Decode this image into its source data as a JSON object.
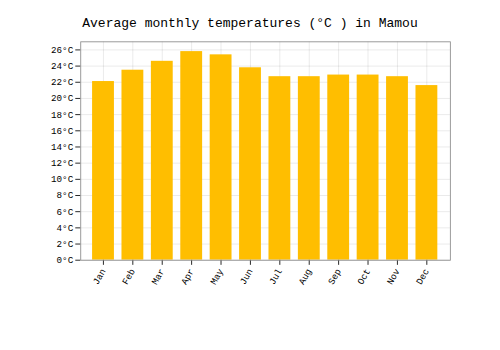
{
  "chart_data": {
    "type": "bar",
    "title": "Average monthly temperatures (°C ) in Mamou",
    "categories": [
      "Jan",
      "Feb",
      "Mar",
      "Apr",
      "May",
      "Jun",
      "Jul",
      "Aug",
      "Sep",
      "Oct",
      "Nov",
      "Dec"
    ],
    "values": [
      22.1,
      23.5,
      24.6,
      25.8,
      25.4,
      23.8,
      22.7,
      22.7,
      22.9,
      22.9,
      22.7,
      21.6
    ],
    "color": "#FFBE00",
    "ylim": [
      0,
      27
    ],
    "yticks": [
      {
        "value": 0,
        "label": "0°C"
      },
      {
        "value": 2,
        "label": "2°C"
      },
      {
        "value": 4,
        "label": "4°C"
      },
      {
        "value": 6,
        "label": "6°C"
      },
      {
        "value": 8,
        "label": "8°C"
      },
      {
        "value": 10,
        "label": "10°C"
      },
      {
        "value": 12,
        "label": "12°C"
      },
      {
        "value": 14,
        "label": "14°C"
      },
      {
        "value": 16,
        "label": "16°C"
      },
      {
        "value": 18,
        "label": "18°C"
      },
      {
        "value": 20,
        "label": "20°C"
      },
      {
        "value": 22,
        "label": "22°C"
      },
      {
        "value": 24,
        "label": "24°C"
      },
      {
        "value": 26,
        "label": "26°C"
      }
    ],
    "grid": true
  }
}
